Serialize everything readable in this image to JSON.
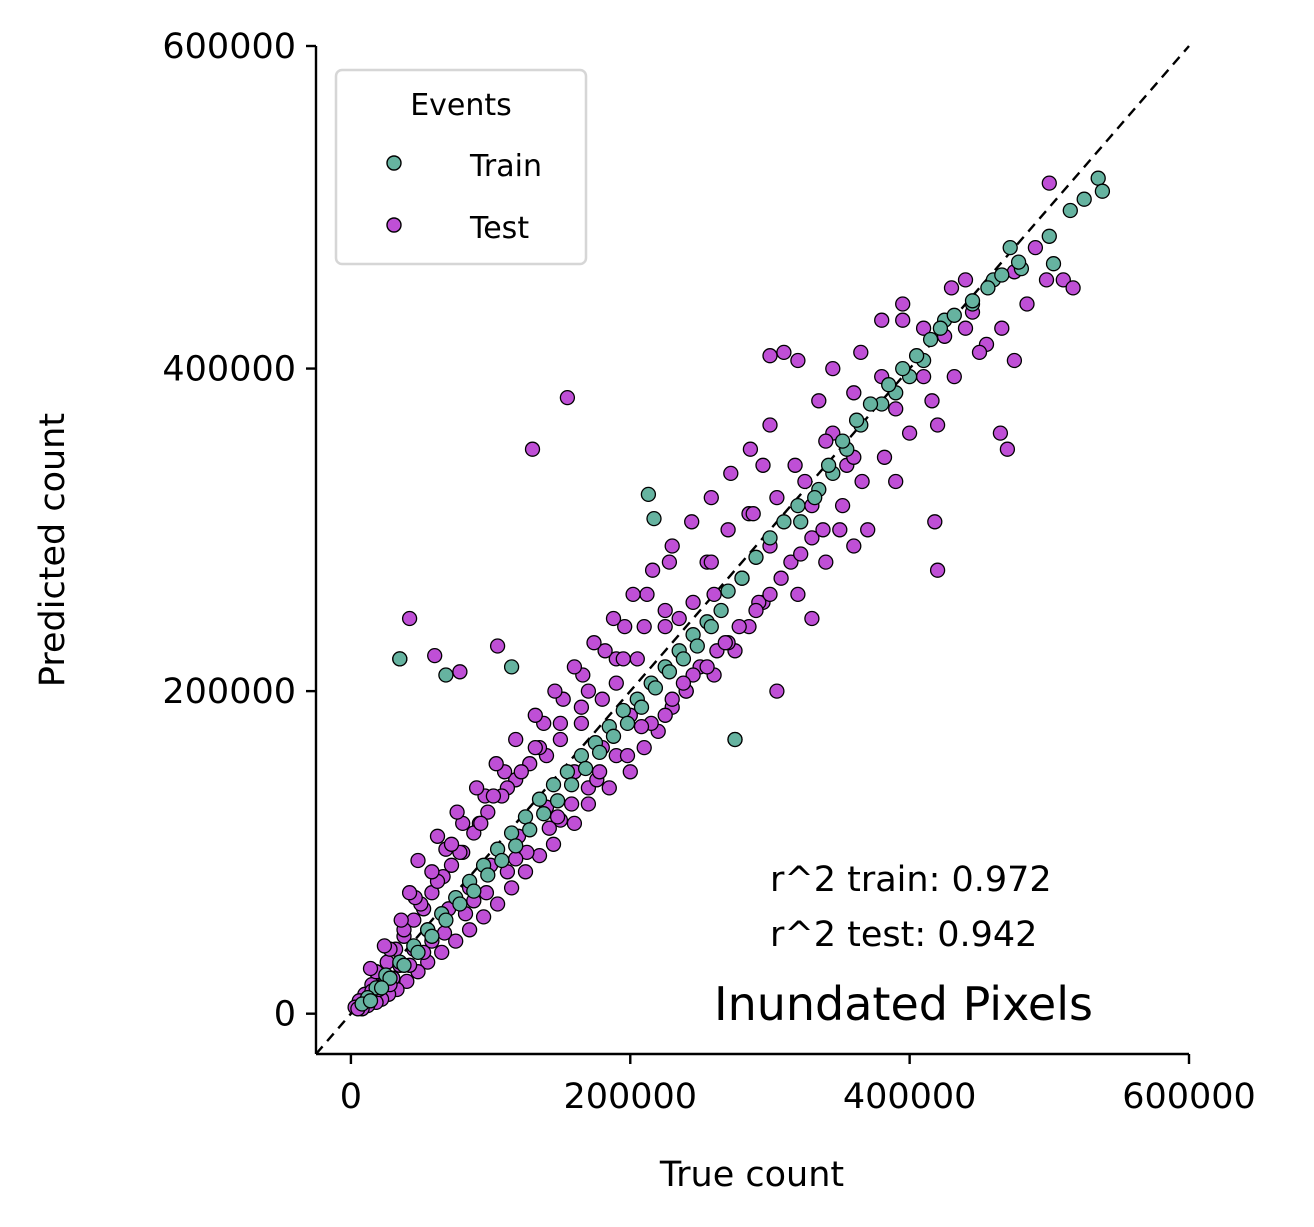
{
  "chart_data": {
    "type": "scatter",
    "xlabel": "True count",
    "ylabel": "Predicted count",
    "xlim": [
      -25000,
      600000
    ],
    "ylim": [
      -25000,
      600000
    ],
    "x_ticks": [
      0,
      200000,
      400000,
      600000
    ],
    "y_ticks": [
      0,
      200000,
      400000,
      600000
    ],
    "x_tick_labels": [
      "0",
      "200000",
      "400000",
      "600000"
    ],
    "y_tick_labels": [
      "0",
      "200000",
      "400000",
      "600000"
    ],
    "reference_line": "y = x (dashed, black)",
    "grid": false,
    "legend": {
      "title": "Events",
      "placement": "top-left",
      "entries": [
        "Train",
        "Test"
      ]
    },
    "annotation_lines": [
      "r^2 train: 0.972",
      "r^2 test: 0.942"
    ],
    "panel_title": "Inundated Pixels",
    "series": [
      {
        "name": "Test",
        "color": "#bf4fd6",
        "x": [
          155000,
          130000,
          42000,
          35000,
          60000,
          105000,
          78000,
          300000,
          310000,
          320000,
          295000,
          420000,
          418000,
          470000,
          465000,
          500000,
          510000,
          517000,
          475000,
          455000,
          445000,
          440000,
          430000,
          395000,
          380000,
          360000,
          355000,
          350000,
          345000,
          325000,
          330000,
          305000,
          315000,
          285000,
          270000,
          255000,
          245000,
          235000,
          225000,
          205000,
          190000,
          180000,
          165000,
          150000,
          140000,
          128000,
          118000,
          112000,
          98000,
          92000,
          88000,
          80000,
          72000,
          66000,
          58000,
          52000,
          45000,
          38000,
          32000,
          26000,
          20000,
          15000,
          10000,
          6000,
          3000,
          240000,
          260000,
          275000,
          285000,
          295000,
          210000,
          220000,
          200000,
          185000,
          170000,
          160000,
          145000,
          135000,
          125000,
          115000,
          105000,
          95000,
          85000,
          75000,
          65000,
          55000,
          48000,
          40000,
          33000,
          27000,
          22000,
          18000,
          12000,
          8000,
          260000,
          280000,
          300000,
          330000,
          360000,
          390000,
          410000,
          440000,
          475000,
          490000,
          320000,
          340000,
          370000,
          230000,
          250000,
          200000,
          180000,
          160000,
          140000,
          120000,
          100000,
          85000,
          70000,
          55000,
          45000,
          35000,
          25000,
          15000,
          210000,
          190000,
          170000,
          150000,
          135000,
          122000,
          108000,
          93000,
          78000,
          62000,
          50000,
          38000,
          28000,
          18000,
          150000,
          170000,
          190000,
          215000,
          230000,
          245000,
          262000,
          278000,
          292000,
          308000,
          322000,
          338000,
          352000,
          366000,
          382000,
          400000,
          416000,
          432000,
          450000,
          466000,
          484000,
          498000,
          380000,
          395000,
          410000,
          425000,
          345000,
          365000,
          335000,
          290000,
          270000,
          255000,
          240000,
          225000,
          198000,
          176000,
          158000,
          142000,
          126000,
          112000,
          97000,
          82000,
          67000,
          52000,
          42000,
          30000,
          20000,
          11000,
          5000,
          275000,
          305000,
          228000,
          212000,
          196000,
          182000,
          166000,
          152000,
          138000,
          110000,
          96000,
          80000,
          68000,
          58000,
          46000,
          36000,
          24000,
          14000,
          330000,
          300000,
          268000,
          238000,
          208000,
          178000,
          148000,
          118000,
          88000,
          58000,
          28000,
          360000,
          390000,
          420000,
          340000,
          318000,
          288000,
          258000,
          225000,
          195000,
          165000,
          132000,
          102000,
          72000,
          42000,
          48000,
          62000,
          76000,
          90000,
          104000,
          118000,
          132000,
          146000,
          160000,
          174000,
          188000,
          202000,
          216000,
          230000,
          244000,
          258000,
          272000,
          286000,
          300000
        ],
        "y": [
          382000,
          350000,
          245000,
          220000,
          222000,
          228000,
          212000,
          408000,
          410000,
          405000,
          340000,
          275000,
          305000,
          350000,
          360000,
          515000,
          455000,
          450000,
          405000,
          415000,
          435000,
          455000,
          450000,
          430000,
          395000,
          385000,
          340000,
          300000,
          360000,
          330000,
          295000,
          320000,
          280000,
          310000,
          300000,
          280000,
          255000,
          245000,
          240000,
          220000,
          205000,
          195000,
          180000,
          170000,
          160000,
          155000,
          145000,
          140000,
          125000,
          118000,
          112000,
          100000,
          92000,
          85000,
          75000,
          65000,
          58000,
          48000,
          40000,
          32000,
          25000,
          18000,
          12000,
          8000,
          4000,
          200000,
          210000,
          225000,
          240000,
          255000,
          165000,
          175000,
          150000,
          140000,
          130000,
          118000,
          105000,
          98000,
          88000,
          78000,
          68000,
          60000,
          52000,
          45000,
          38000,
          32000,
          26000,
          20000,
          15000,
          12000,
          9000,
          7000,
          5000,
          3000,
          260000,
          270000,
          290000,
          315000,
          345000,
          375000,
          395000,
          425000,
          460000,
          475000,
          260000,
          280000,
          300000,
          190000,
          215000,
          185000,
          165000,
          150000,
          128000,
          110000,
          92000,
          78000,
          65000,
          52000,
          40000,
          30000,
          22000,
          14000,
          240000,
          220000,
          200000,
          180000,
          165000,
          150000,
          135000,
          118000,
          100000,
          82000,
          68000,
          52000,
          40000,
          26000,
          120000,
          140000,
          160000,
          180000,
          195000,
          210000,
          225000,
          240000,
          255000,
          270000,
          285000,
          300000,
          315000,
          330000,
          345000,
          360000,
          380000,
          395000,
          410000,
          425000,
          440000,
          455000,
          430000,
          440000,
          425000,
          420000,
          400000,
          410000,
          380000,
          250000,
          230000,
          215000,
          200000,
          185000,
          160000,
          145000,
          130000,
          115000,
          100000,
          88000,
          75000,
          62000,
          50000,
          38000,
          30000,
          22000,
          15000,
          8000,
          3000,
          170000,
          200000,
          280000,
          260000,
          240000,
          225000,
          210000,
          195000,
          180000,
          150000,
          135000,
          118000,
          102000,
          88000,
          72000,
          58000,
          42000,
          28000,
          245000,
          260000,
          230000,
          205000,
          178000,
          150000,
          122000,
          96000,
          70000,
          45000,
          18000,
          290000,
          330000,
          365000,
          355000,
          340000,
          310000,
          280000,
          250000,
          220000,
          190000,
          165000,
          135000,
          105000,
          75000,
          95000,
          110000,
          125000,
          140000,
          155000,
          170000,
          185000,
          200000,
          215000,
          230000,
          245000,
          260000,
          275000,
          290000,
          305000,
          320000,
          335000,
          350000,
          365000
        ]
      },
      {
        "name": "Train",
        "color": "#66b3a0",
        "x": [
          535000,
          538000,
          525000,
          515000,
          500000,
          503000,
          480000,
          472000,
          460000,
          445000,
          425000,
          410000,
          400000,
          390000,
          380000,
          365000,
          355000,
          345000,
          335000,
          320000,
          310000,
          300000,
          290000,
          280000,
          270000,
          265000,
          255000,
          245000,
          235000,
          225000,
          215000,
          205000,
          195000,
          185000,
          175000,
          165000,
          155000,
          145000,
          135000,
          125000,
          115000,
          105000,
          95000,
          85000,
          75000,
          65000,
          55000,
          45000,
          35000,
          25000,
          18000,
          12000,
          8000,
          213000,
          217000,
          35000,
          68000,
          115000,
          275000,
          322000,
          332000,
          342000,
          352000,
          362000,
          372000,
          385000,
          395000,
          405000,
          415000,
          422000,
          432000,
          445000,
          456000,
          466000,
          478000,
          258000,
          248000,
          238000,
          228000,
          218000,
          208000,
          198000,
          188000,
          178000,
          168000,
          158000,
          148000,
          138000,
          128000,
          118000,
          108000,
          98000,
          88000,
          78000,
          68000,
          58000,
          48000,
          38000,
          28000,
          22000,
          14000
        ],
        "y": [
          518000,
          510000,
          505000,
          498000,
          482000,
          465000,
          462000,
          475000,
          455000,
          440000,
          430000,
          405000,
          395000,
          385000,
          378000,
          365000,
          350000,
          335000,
          325000,
          315000,
          305000,
          295000,
          283000,
          270000,
          262000,
          250000,
          243000,
          235000,
          225000,
          215000,
          205000,
          195000,
          188000,
          178000,
          168000,
          160000,
          150000,
          142000,
          133000,
          122000,
          112000,
          102000,
          92000,
          82000,
          72000,
          62000,
          52000,
          42000,
          32000,
          24000,
          16000,
          10000,
          6000,
          322000,
          307000,
          220000,
          210000,
          215000,
          170000,
          305000,
          320000,
          340000,
          355000,
          368000,
          378000,
          390000,
          400000,
          408000,
          418000,
          425000,
          433000,
          442000,
          450000,
          458000,
          466000,
          240000,
          228000,
          220000,
          212000,
          202000,
          190000,
          180000,
          172000,
          162000,
          152000,
          142000,
          132000,
          124000,
          114000,
          104000,
          95000,
          86000,
          76000,
          68000,
          58000,
          48000,
          38000,
          30000,
          22000,
          16000,
          8000
        ]
      }
    ]
  }
}
